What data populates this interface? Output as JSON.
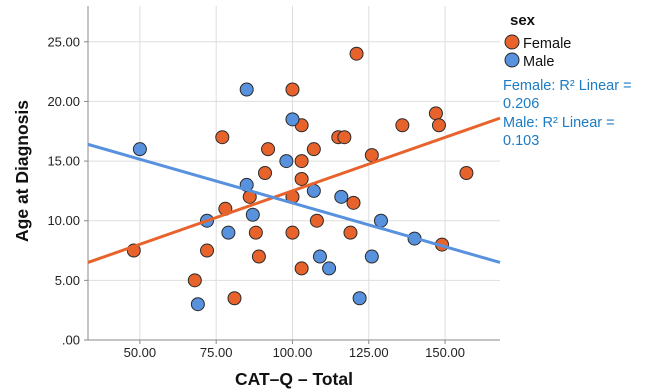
{
  "chart_data": {
    "type": "scatter",
    "xlabel": "CAT–Q – Total",
    "ylabel": "Age at Diagnosis",
    "xlim": [
      33,
      168
    ],
    "ylim": [
      0,
      28
    ],
    "xticks": [
      50,
      75,
      100,
      125,
      150
    ],
    "xtick_labels": [
      "50.00",
      "75.00",
      "100.00",
      "125.00",
      "150.00"
    ],
    "yticks": [
      0,
      5,
      10,
      15,
      20,
      25
    ],
    "ytick_labels": [
      ".00",
      "5.00",
      "10.00",
      "15.00",
      "20.00",
      "25.00"
    ],
    "grid": true,
    "legend": {
      "title": "sex",
      "position": "right"
    },
    "series": [
      {
        "name": "Female",
        "color": "#e8632c",
        "points": [
          [
            48,
            7.5
          ],
          [
            68,
            5
          ],
          [
            72,
            7.5
          ],
          [
            77,
            17
          ],
          [
            78,
            11
          ],
          [
            81,
            3.5
          ],
          [
            86,
            12
          ],
          [
            88,
            9
          ],
          [
            89,
            7
          ],
          [
            91,
            14
          ],
          [
            92,
            16
          ],
          [
            100,
            21
          ],
          [
            100,
            12
          ],
          [
            100,
            9
          ],
          [
            103,
            15
          ],
          [
            103,
            18
          ],
          [
            103,
            13.5
          ],
          [
            103,
            6
          ],
          [
            107,
            16
          ],
          [
            108,
            10
          ],
          [
            115,
            17
          ],
          [
            117,
            17
          ],
          [
            119,
            9
          ],
          [
            120,
            11.5
          ],
          [
            121,
            24
          ],
          [
            126,
            15.5
          ],
          [
            136,
            18
          ],
          [
            147,
            19
          ],
          [
            148,
            18
          ],
          [
            149,
            8
          ],
          [
            157,
            14
          ]
        ],
        "fit_line": {
          "type": "linear",
          "start": [
            33,
            6.5
          ],
          "end": [
            168,
            18.6
          ],
          "label": "Female: R² Linear =",
          "r2": "0.206"
        }
      },
      {
        "name": "Male",
        "color": "#5891dd",
        "points": [
          [
            50,
            16
          ],
          [
            69,
            3
          ],
          [
            72,
            10
          ],
          [
            79,
            9
          ],
          [
            85,
            21
          ],
          [
            85,
            13
          ],
          [
            87,
            10.5
          ],
          [
            98,
            15
          ],
          [
            100,
            18.5
          ],
          [
            107,
            12.5
          ],
          [
            109,
            7
          ],
          [
            112,
            6
          ],
          [
            116,
            12
          ],
          [
            122,
            3.5
          ],
          [
            126,
            7
          ],
          [
            129,
            10
          ],
          [
            140,
            8.5
          ]
        ],
        "fit_line": {
          "type": "linear",
          "start": [
            33,
            16.4
          ],
          "end": [
            168,
            6.5
          ],
          "label": "Male: R² Linear =",
          "r2": "0.103"
        }
      }
    ]
  }
}
